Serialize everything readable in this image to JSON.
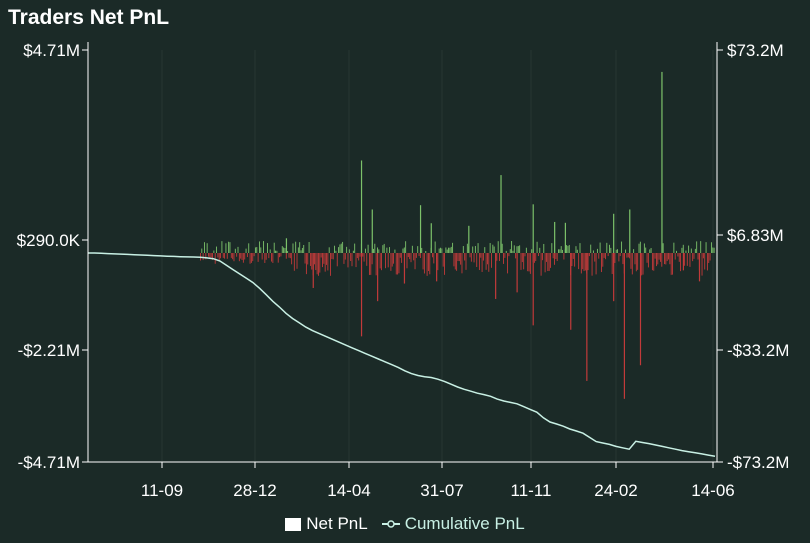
{
  "title": "Traders Net PnL",
  "legend": {
    "net_pnl": "Net PnL",
    "cumulative_pnl": "Cumulative PnL"
  },
  "colors": {
    "background": "#1b2a27",
    "positive": "#7cc26a",
    "negative": "#c23a3a",
    "cumulative": "#c8f0e4",
    "grid": "#5a6663"
  },
  "chart_data": {
    "type": "bar+line",
    "title": "Traders Net PnL",
    "left_axis": {
      "tick_labels": [
        "$4.71M",
        "$290.0K",
        "-$2.21M",
        "-$4.71M"
      ],
      "tick_values": [
        4710000,
        290000,
        -2210000,
        -4710000
      ],
      "range": [
        -4710000,
        4710000
      ]
    },
    "right_axis": {
      "tick_labels": [
        "$73.2M",
        "$6.83M",
        "-$33.2M",
        "-$73.2M"
      ],
      "tick_values": [
        73200000,
        6830000,
        -33200000,
        -73200000
      ],
      "range": [
        -73200000,
        73200000
      ]
    },
    "x_axis": {
      "tick_labels": [
        "11-09",
        "28-12",
        "14-04",
        "31-07",
        "11-11",
        "24-02",
        "14-06"
      ]
    },
    "series": [
      {
        "name": "Net PnL",
        "type": "bar",
        "axis": "left",
        "spikes": [
          {
            "x_index": 16,
            "value": 330000
          },
          {
            "x_index": 30,
            "value": 2140000
          },
          {
            "x_index": 32,
            "value": 1000000
          },
          {
            "x_index": 41,
            "value": 1100000
          },
          {
            "x_index": 43,
            "value": 680000
          },
          {
            "x_index": 50,
            "value": 620000
          },
          {
            "x_index": 56,
            "value": 1800000
          },
          {
            "x_index": 62,
            "value": 1120000
          },
          {
            "x_index": 66,
            "value": 710000
          },
          {
            "x_index": 68,
            "value": 690000
          },
          {
            "x_index": 77,
            "value": 900000
          },
          {
            "x_index": 80,
            "value": 1000000
          },
          {
            "x_index": 86,
            "value": 4200000
          },
          {
            "x_index": 21,
            "value": -800000
          },
          {
            "x_index": 30,
            "value": -1900000
          },
          {
            "x_index": 33,
            "value": -1100000
          },
          {
            "x_index": 38,
            "value": -700000
          },
          {
            "x_index": 44,
            "value": -650000
          },
          {
            "x_index": 55,
            "value": -1050000
          },
          {
            "x_index": 59,
            "value": -900000
          },
          {
            "x_index": 62,
            "value": -1650000
          },
          {
            "x_index": 69,
            "value": -1750000
          },
          {
            "x_index": 72,
            "value": -2900000
          },
          {
            "x_index": 77,
            "value": -1100000
          },
          {
            "x_index": 79,
            "value": -3300000
          },
          {
            "x_index": 82,
            "value": -2550000
          },
          {
            "x_index": 90,
            "value": -400000
          },
          {
            "x_index": 93,
            "value": -650000
          }
        ]
      },
      {
        "name": "Cumulative PnL",
        "type": "line",
        "axis": "right",
        "values": [
          0,
          0,
          -100000,
          -200000,
          -300000,
          -400000,
          -500000,
          -600000,
          -700000,
          -800000,
          -900000,
          -1000000,
          -1100000,
          -1200000,
          -1300000,
          -1350000,
          -1400000,
          -1500000,
          -1700000,
          -2000000,
          -2800000,
          -4300000,
          -5800000,
          -7300000,
          -8800000,
          -10300000,
          -12300000,
          -14500000,
          -16800000,
          -18800000,
          -21000000,
          -22800000,
          -24300000,
          -25800000,
          -27000000,
          -28000000,
          -29000000,
          -30000000,
          -31000000,
          -32000000,
          -33000000,
          -34000000,
          -35000000,
          -36000000,
          -37000000,
          -38000000,
          -39000000,
          -40000000,
          -41200000,
          -42200000,
          -42900000,
          -43300000,
          -43600000,
          -44200000,
          -45000000,
          -46000000,
          -47000000,
          -47800000,
          -48500000,
          -49200000,
          -49700000,
          -50300000,
          -51300000,
          -52000000,
          -52500000,
          -53000000,
          -54000000,
          -55000000,
          -56000000,
          -58000000,
          -59500000,
          -60200000,
          -61000000,
          -62000000,
          -62700000,
          -63500000,
          -65000000,
          -66500000,
          -67000000,
          -67500000,
          -68200000,
          -68700000,
          -69200000,
          -66400000,
          -66800000,
          -67200000,
          -67700000,
          -68200000,
          -68700000,
          -69200000,
          -69700000,
          -70100000,
          -70500000,
          -70900000,
          -71300000,
          -71700000
        ]
      }
    ]
  }
}
